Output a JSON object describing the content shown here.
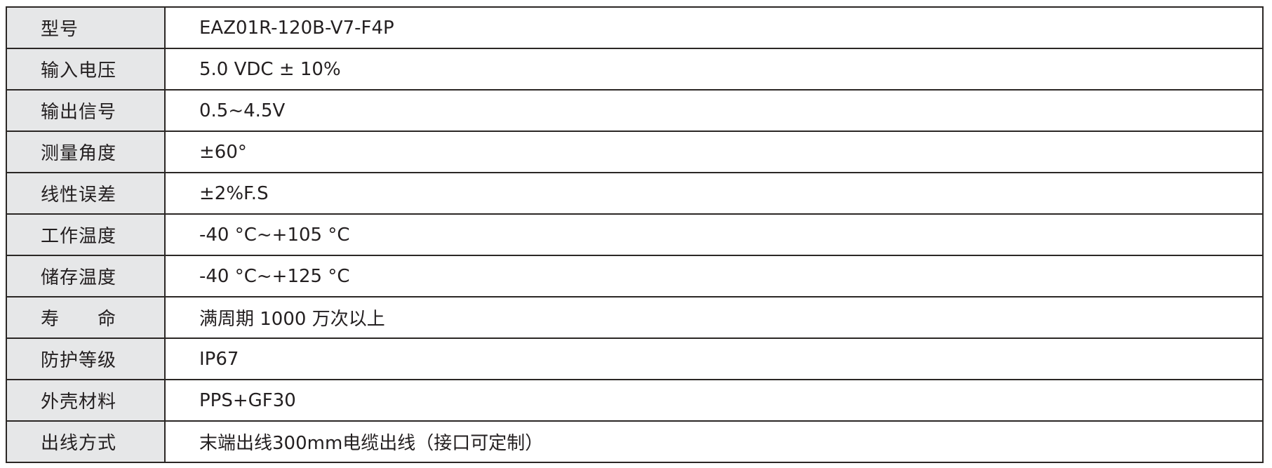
{
  "rows": [
    {
      "label": "型号",
      "value": "EAZ01R-120B-V7-F4P"
    },
    {
      "label": "输入电压",
      "value": "5.0 VDC ± 10%"
    },
    {
      "label": "输出信号",
      "value": "0.5~4.5V"
    },
    {
      "label": "测量角度",
      "value": "±60°"
    },
    {
      "label": "线性误差",
      "value": "±2%F.S"
    },
    {
      "label": "工作温度",
      "value": "-40 °C~+105 °C"
    },
    {
      "label": "储存温度",
      "value": "-40 °C~+125 °C"
    },
    {
      "label": "寿　　命",
      "value": "满周期 1000 万次以上"
    },
    {
      "label": "防护等级",
      "value": "IP67"
    },
    {
      "label": "外壳材料",
      "value": "PPS+GF30"
    },
    {
      "label": "出线方式",
      "value": "末端出线300mm电缆出线（接口可定制）"
    }
  ]
}
